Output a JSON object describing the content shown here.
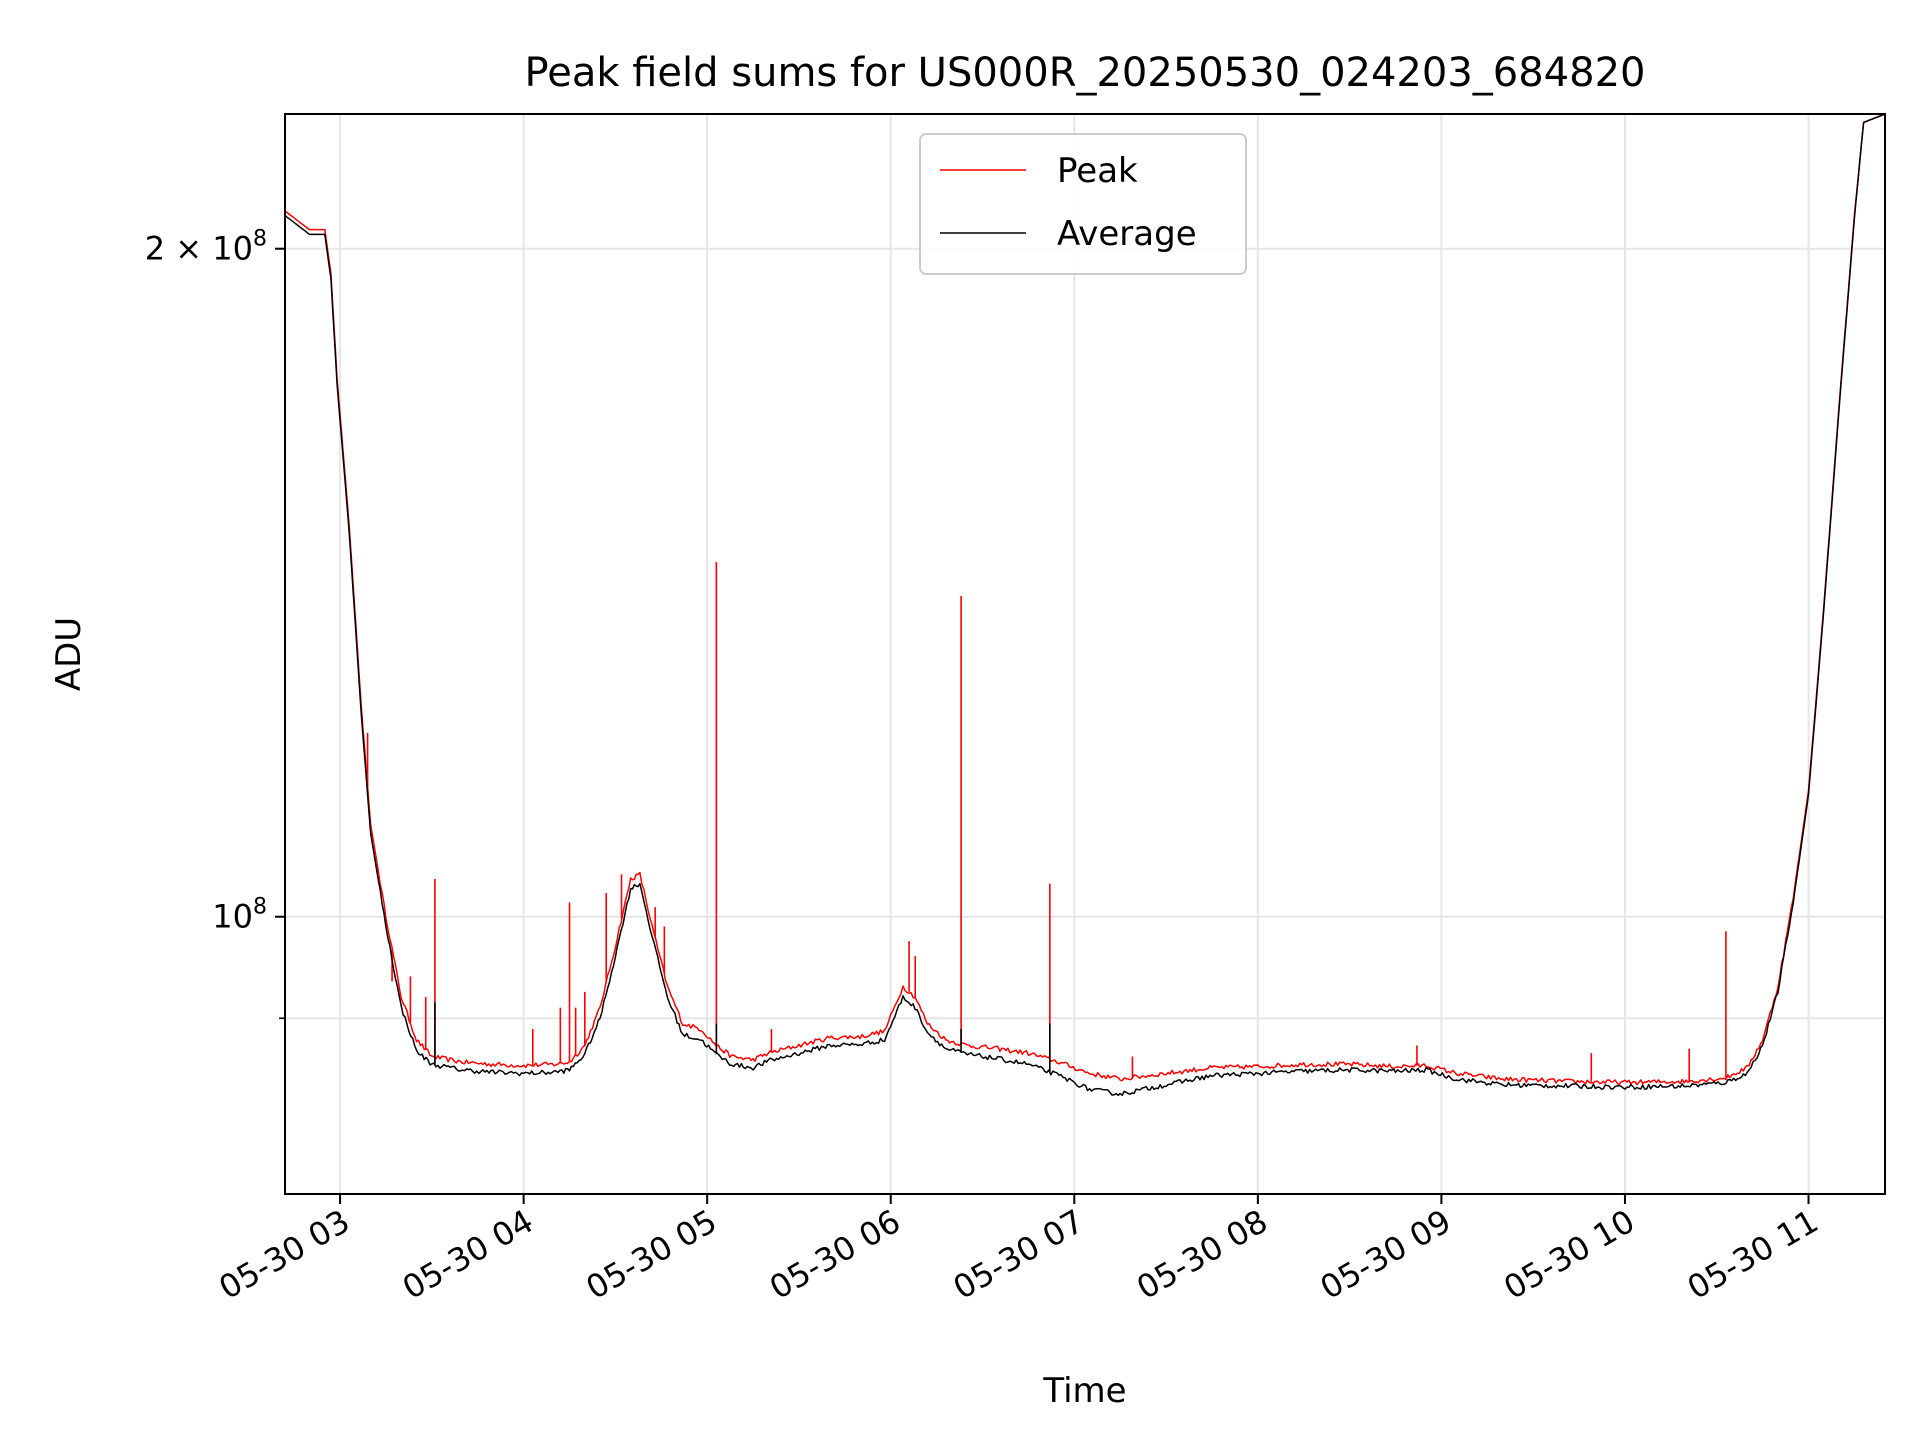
{
  "chart_data": {
    "type": "line",
    "title": "Peak field sums for US000R_20250530_024203_684820",
    "xlabel": "Time",
    "ylabel": "ADU",
    "x_scale": "time",
    "y_scale": "log",
    "xlim": [
      "2025-05-30 02:42",
      "2025-05-30 11:25"
    ],
    "ylim": [
      75000000,
      230000000
    ],
    "grid": true,
    "legend_position": "upper center",
    "x_ticks": [
      {
        "t": "2025-05-30 03:00",
        "label": "05-30 03"
      },
      {
        "t": "2025-05-30 04:00",
        "label": "05-30 04"
      },
      {
        "t": "2025-05-30 05:00",
        "label": "05-30 05"
      },
      {
        "t": "2025-05-30 06:00",
        "label": "05-30 06"
      },
      {
        "t": "2025-05-30 07:00",
        "label": "05-30 07"
      },
      {
        "t": "2025-05-30 08:00",
        "label": "05-30 08"
      },
      {
        "t": "2025-05-30 09:00",
        "label": "05-30 09"
      },
      {
        "t": "2025-05-30 10:00",
        "label": "05-30 10"
      },
      {
        "t": "2025-05-30 11:00",
        "label": "05-30 11"
      }
    ],
    "y_ticks_major": [
      {
        "value": 100000000,
        "base": "10",
        "exp": "8",
        "coef": ""
      },
      {
        "value": 200000000,
        "base": "10",
        "exp": "8",
        "coef": "2 × "
      }
    ],
    "y_ticks_minor": [
      90000000
    ],
    "series": [
      {
        "name": "Peak",
        "color": "#ff0000",
        "points": [
          [
            "2025-05-30 02:42",
            208000000
          ],
          [
            "2025-05-30 02:50",
            204000000
          ],
          [
            "2025-05-30 02:55",
            204000000
          ],
          [
            "2025-05-30 02:57",
            195000000
          ],
          [
            "2025-05-30 02:59",
            175000000
          ],
          [
            "2025-05-30 03:03",
            150000000
          ],
          [
            "2025-05-30 03:07",
            124000000
          ],
          [
            "2025-05-30 03:10",
            110000000
          ],
          [
            "2025-05-30 03:15",
            100000000
          ],
          [
            "2025-05-30 03:20",
            92000000
          ],
          [
            "2025-05-30 03:25",
            88000000
          ],
          [
            "2025-05-30 03:30",
            86500000
          ],
          [
            "2025-05-30 03:40",
            86000000
          ],
          [
            "2025-05-30 03:50",
            85800000
          ],
          [
            "2025-05-30 04:00",
            85700000
          ],
          [
            "2025-05-30 04:10",
            85800000
          ],
          [
            "2025-05-30 04:15",
            86000000
          ],
          [
            "2025-05-30 04:20",
            87500000
          ],
          [
            "2025-05-30 04:25",
            91000000
          ],
          [
            "2025-05-30 04:30",
            97000000
          ],
          [
            "2025-05-30 04:35",
            104000000
          ],
          [
            "2025-05-30 04:38",
            104500000
          ],
          [
            "2025-05-30 04:42",
            99000000
          ],
          [
            "2025-05-30 04:47",
            93000000
          ],
          [
            "2025-05-30 04:52",
            89500000
          ],
          [
            "2025-05-30 04:58",
            89000000
          ],
          [
            "2025-05-30 05:03",
            87500000
          ],
          [
            "2025-05-30 05:08",
            86500000
          ],
          [
            "2025-05-30 05:15",
            86200000
          ],
          [
            "2025-05-30 05:20",
            86800000
          ],
          [
            "2025-05-30 05:30",
            87500000
          ],
          [
            "2025-05-30 05:40",
            88200000
          ],
          [
            "2025-05-30 05:50",
            88300000
          ],
          [
            "2025-05-30 05:58",
            88800000
          ],
          [
            "2025-05-30 06:04",
            93000000
          ],
          [
            "2025-05-30 06:08",
            92000000
          ],
          [
            "2025-05-30 06:12",
            89500000
          ],
          [
            "2025-05-30 06:18",
            88000000
          ],
          [
            "2025-05-30 06:25",
            87500000
          ],
          [
            "2025-05-30 06:35",
            87200000
          ],
          [
            "2025-05-30 06:45",
            86800000
          ],
          [
            "2025-05-30 06:55",
            86000000
          ],
          [
            "2025-05-30 07:05",
            85000000
          ],
          [
            "2025-05-30 07:15",
            84500000
          ],
          [
            "2025-05-30 07:30",
            85000000
          ],
          [
            "2025-05-30 07:45",
            85500000
          ],
          [
            "2025-05-30 08:00",
            85600000
          ],
          [
            "2025-05-30 08:15",
            85800000
          ],
          [
            "2025-05-30 08:30",
            85800000
          ],
          [
            "2025-05-30 08:45",
            85600000
          ],
          [
            "2025-05-30 08:55",
            85700000
          ],
          [
            "2025-05-30 09:05",
            85000000
          ],
          [
            "2025-05-30 09:20",
            84500000
          ],
          [
            "2025-05-30 09:40",
            84300000
          ],
          [
            "2025-05-30 10:00",
            84200000
          ],
          [
            "2025-05-30 10:20",
            84300000
          ],
          [
            "2025-05-30 10:33",
            84600000
          ],
          [
            "2025-05-30 10:40",
            85500000
          ],
          [
            "2025-05-30 10:45",
            88000000
          ],
          [
            "2025-05-30 10:50",
            93000000
          ],
          [
            "2025-05-30 10:55",
            102000000
          ],
          [
            "2025-05-30 11:00",
            114000000
          ],
          [
            "2025-05-30 11:05",
            138000000
          ],
          [
            "2025-05-30 11:10",
            170000000
          ],
          [
            "2025-05-30 11:15",
            207000000
          ],
          [
            "2025-05-30 11:18",
            228000000
          ],
          [
            "2025-05-30 11:25",
            230000000
          ]
        ],
        "spikes": [
          [
            "2025-05-30 03:09",
            121000000
          ],
          [
            "2025-05-30 03:17",
            93500000
          ],
          [
            "2025-05-30 03:23",
            94000000
          ],
          [
            "2025-05-30 03:28",
            92000000
          ],
          [
            "2025-05-30 03:31",
            104000000
          ],
          [
            "2025-05-30 04:03",
            89000000
          ],
          [
            "2025-05-30 04:12",
            91000000
          ],
          [
            "2025-05-30 04:15",
            101500000
          ],
          [
            "2025-05-30 04:17",
            91000000
          ],
          [
            "2025-05-30 04:20",
            92500000
          ],
          [
            "2025-05-30 04:27",
            102500000
          ],
          [
            "2025-05-30 04:32",
            104500000
          ],
          [
            "2025-05-30 04:43",
            101000000
          ],
          [
            "2025-05-30 04:46",
            99000000
          ],
          [
            "2025-05-30 05:03",
            144500000
          ],
          [
            "2025-05-30 05:21",
            89000000
          ],
          [
            "2025-05-30 06:06",
            97500000
          ],
          [
            "2025-05-30 06:08",
            96000000
          ],
          [
            "2025-05-30 06:23",
            139500000
          ],
          [
            "2025-05-30 06:52",
            103500000
          ],
          [
            "2025-05-30 07:19",
            86500000
          ],
          [
            "2025-05-30 08:52",
            87500000
          ],
          [
            "2025-05-30 09:49",
            86800000
          ],
          [
            "2025-05-30 10:21",
            87200000
          ],
          [
            "2025-05-30 10:33",
            98500000
          ]
        ]
      },
      {
        "name": "Average",
        "color": "#000000",
        "points": [
          [
            "2025-05-30 02:42",
            207000000
          ],
          [
            "2025-05-30 02:50",
            203000000
          ],
          [
            "2025-05-30 02:55",
            203000000
          ],
          [
            "2025-05-30 02:57",
            194000000
          ],
          [
            "2025-05-30 02:59",
            174000000
          ],
          [
            "2025-05-30 03:03",
            149000000
          ],
          [
            "2025-05-30 03:07",
            123000000
          ],
          [
            "2025-05-30 03:10",
            109000000
          ],
          [
            "2025-05-30 03:15",
            99000000
          ],
          [
            "2025-05-30 03:20",
            91000000
          ],
          [
            "2025-05-30 03:25",
            87000000
          ],
          [
            "2025-05-30 03:30",
            85800000
          ],
          [
            "2025-05-30 03:40",
            85300000
          ],
          [
            "2025-05-30 03:50",
            85100000
          ],
          [
            "2025-05-30 04:00",
            85000000
          ],
          [
            "2025-05-30 04:10",
            85100000
          ],
          [
            "2025-05-30 04:15",
            85300000
          ],
          [
            "2025-05-30 04:20",
            86700000
          ],
          [
            "2025-05-30 04:25",
            90000000
          ],
          [
            "2025-05-30 04:30",
            96000000
          ],
          [
            "2025-05-30 04:35",
            103000000
          ],
          [
            "2025-05-30 04:38",
            103500000
          ],
          [
            "2025-05-30 04:42",
            98000000
          ],
          [
            "2025-05-30 04:47",
            92000000
          ],
          [
            "2025-05-30 04:52",
            88500000
          ],
          [
            "2025-05-30 04:58",
            88000000
          ],
          [
            "2025-05-30 05:03",
            86700000
          ],
          [
            "2025-05-30 05:08",
            85800000
          ],
          [
            "2025-05-30 05:15",
            85500000
          ],
          [
            "2025-05-30 05:20",
            86100000
          ],
          [
            "2025-05-30 05:30",
            86800000
          ],
          [
            "2025-05-30 05:40",
            87500000
          ],
          [
            "2025-05-30 05:50",
            87600000
          ],
          [
            "2025-05-30 05:58",
            88000000
          ],
          [
            "2025-05-30 06:04",
            92000000
          ],
          [
            "2025-05-30 06:08",
            91000000
          ],
          [
            "2025-05-30 06:12",
            88700000
          ],
          [
            "2025-05-30 06:18",
            87200000
          ],
          [
            "2025-05-30 06:25",
            86700000
          ],
          [
            "2025-05-30 06:35",
            86300000
          ],
          [
            "2025-05-30 06:45",
            85800000
          ],
          [
            "2025-05-30 06:55",
            84800000
          ],
          [
            "2025-05-30 07:05",
            83600000
          ],
          [
            "2025-05-30 07:15",
            83200000
          ],
          [
            "2025-05-30 07:30",
            84000000
          ],
          [
            "2025-05-30 07:45",
            84800000
          ],
          [
            "2025-05-30 08:00",
            85000000
          ],
          [
            "2025-05-30 08:15",
            85200000
          ],
          [
            "2025-05-30 08:30",
            85300000
          ],
          [
            "2025-05-30 08:45",
            85200000
          ],
          [
            "2025-05-30 08:55",
            85300000
          ],
          [
            "2025-05-30 09:05",
            84500000
          ],
          [
            "2025-05-30 09:20",
            84000000
          ],
          [
            "2025-05-30 09:40",
            83900000
          ],
          [
            "2025-05-30 10:00",
            83800000
          ],
          [
            "2025-05-30 10:20",
            83900000
          ],
          [
            "2025-05-30 10:33",
            84200000
          ],
          [
            "2025-05-30 10:40",
            85000000
          ],
          [
            "2025-05-30 10:45",
            87500000
          ],
          [
            "2025-05-30 10:50",
            92500000
          ],
          [
            "2025-05-30 10:55",
            101500000
          ],
          [
            "2025-05-30 11:00",
            113500000
          ],
          [
            "2025-05-30 11:05",
            137500000
          ],
          [
            "2025-05-30 11:10",
            169500000
          ],
          [
            "2025-05-30 11:15",
            206500000
          ],
          [
            "2025-05-30 11:18",
            228000000
          ],
          [
            "2025-05-30 11:25",
            230000000
          ]
        ],
        "spikes": [
          [
            "2025-05-30 03:31",
            91500000
          ],
          [
            "2025-05-30 05:03",
            89500000
          ],
          [
            "2025-05-30 06:23",
            89000000
          ],
          [
            "2025-05-30 06:52",
            89500000
          ]
        ]
      }
    ]
  }
}
